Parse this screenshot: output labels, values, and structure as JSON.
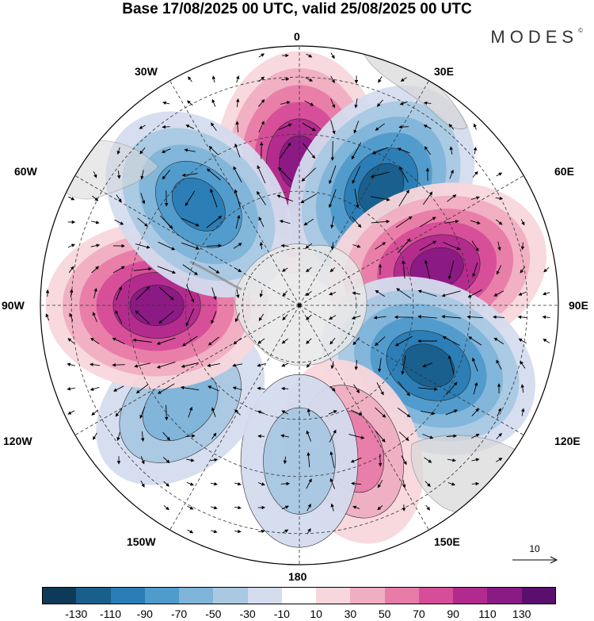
{
  "title": "Base 17/08/2025 00 UTC, valid 25/08/2025 00 UTC",
  "brand": {
    "name": "MODES",
    "mark": "©"
  },
  "map": {
    "projection": "south polar stereographic",
    "longitude_labels": {
      "top": "0",
      "top_left": "30W",
      "top_right": "30E",
      "upper_left": "60W",
      "upper_right": "60E",
      "left": "90W",
      "right": "90E",
      "lower_left": "120W",
      "lower_right": "120E",
      "bottom_left": "150W",
      "bottom_right": "150E",
      "bottom": "180"
    },
    "anomaly_centers": [
      {
        "name": "positive-center-0",
        "lon": 0,
        "value": 130
      },
      {
        "name": "negative-center-35E",
        "lon": 35,
        "value": -130
      },
      {
        "name": "positive-center-75E",
        "lon": 75,
        "value": 130
      },
      {
        "name": "negative-center-115E",
        "lon": 115,
        "value": -130
      },
      {
        "name": "positive-center-160E",
        "lon": 160,
        "value": 70
      },
      {
        "name": "negative-center-180",
        "lon": 180,
        "value": -40
      },
      {
        "name": "negative-center-130W",
        "lon": -130,
        "value": -70
      },
      {
        "name": "positive-center-90W",
        "lon": -90,
        "value": 130
      },
      {
        "name": "negative-center-45W",
        "lon": -45,
        "value": -110
      }
    ]
  },
  "vector_reference": {
    "value": "10"
  },
  "colorbar": {
    "colors": [
      "#0d3a59",
      "#185f8c",
      "#2a7db5",
      "#4f9bcc",
      "#7fb4d9",
      "#a9c8e2",
      "#d4dcee",
      "#ffffff",
      "#f8d7dc",
      "#f0aec2",
      "#e87ca8",
      "#d64d98",
      "#b32a8e",
      "#8a1a84",
      "#5a0f6e"
    ],
    "tick_labels": [
      "-130",
      "-110",
      "-90",
      "-70",
      "-50",
      "-30",
      "-10",
      "10",
      "30",
      "50",
      "70",
      "90",
      "110",
      "130"
    ]
  }
}
